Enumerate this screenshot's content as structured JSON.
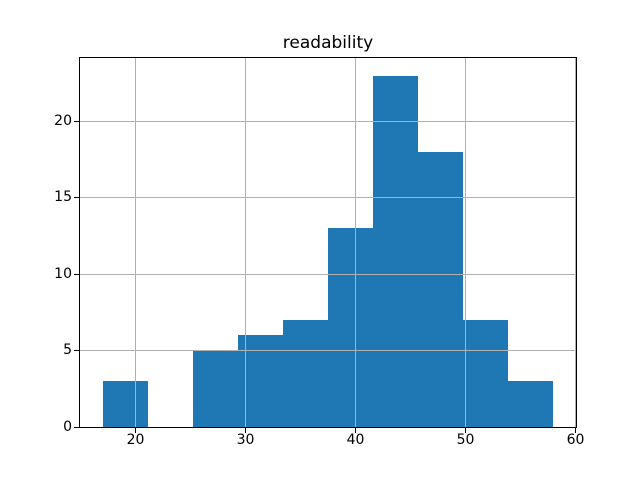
{
  "chart_data": {
    "type": "bar",
    "subtype": "histogram",
    "title": "readability",
    "xlabel": "",
    "ylabel": "",
    "bin_edges": [
      17.0,
      21.1,
      25.2,
      29.3,
      33.4,
      37.5,
      41.6,
      45.7,
      49.8,
      53.9,
      58.0
    ],
    "counts": [
      3,
      0,
      5,
      6,
      7,
      13,
      23,
      18,
      7,
      3
    ],
    "x_ticks": [
      20,
      30,
      40,
      50,
      60
    ],
    "y_ticks": [
      0,
      5,
      10,
      15,
      20
    ],
    "xlim": [
      14.95,
      60.05
    ],
    "ylim": [
      0,
      24.15
    ],
    "grid": true,
    "legend": "none",
    "colors": {
      "bar": "#1f77b4",
      "grid": "#b0b0b0",
      "axis": "#000000",
      "text": "#000000",
      "background": "#ffffff"
    }
  }
}
